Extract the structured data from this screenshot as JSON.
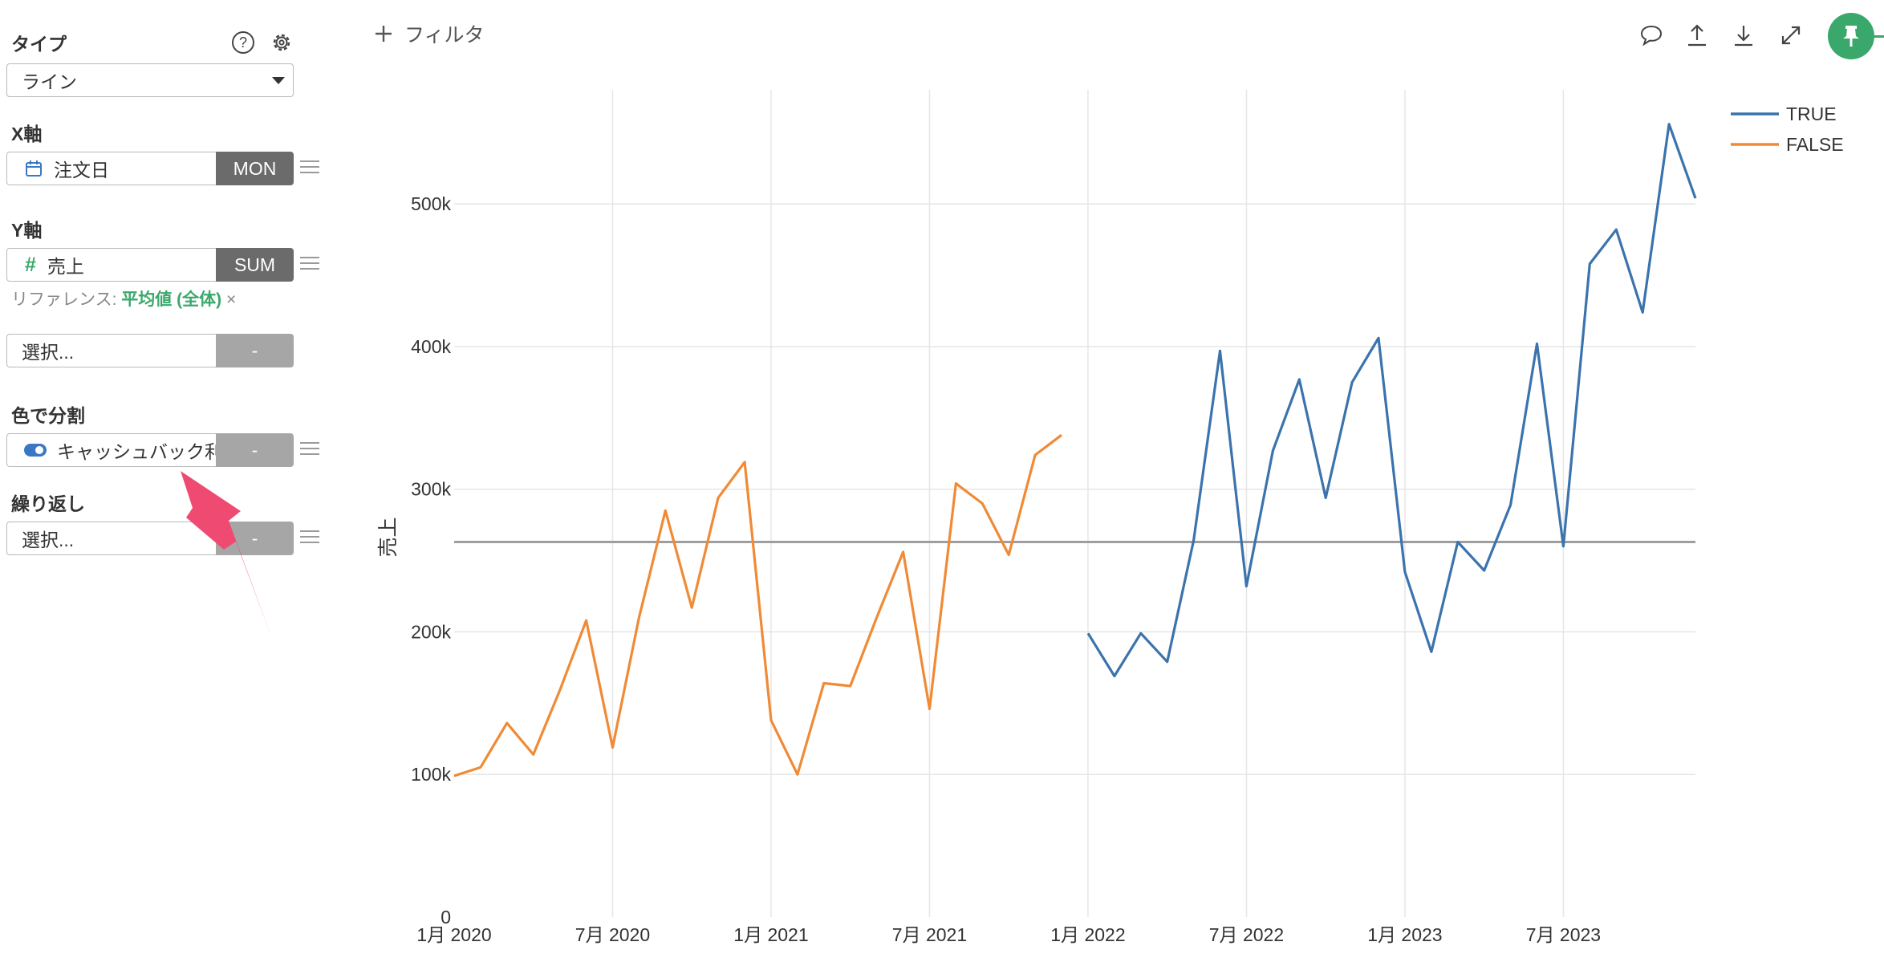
{
  "sidebar": {
    "type_section": {
      "label": "タイプ",
      "help_icon": "question-circle-icon",
      "settings_icon": "gear-icon",
      "selected": "ライン"
    },
    "x_axis": {
      "label": "X軸",
      "field": "注文日",
      "field_icon": "calendar-icon",
      "aggregation": "MON"
    },
    "y_axis": {
      "label": "Y軸",
      "field": "売上",
      "field_icon": "number-hash-icon",
      "aggregation": "SUM",
      "reference_label": "リファレンス:",
      "reference_value": "平均値 (全体)",
      "reference_remove": "×"
    },
    "extra_select": {
      "placeholder": "選択...",
      "aggregation": "-"
    },
    "color_split": {
      "label": "色で分割",
      "field": "キャッシュバック利用",
      "field_icon": "toggle-icon",
      "aggregation": "-"
    },
    "repeat": {
      "label": "繰り返し",
      "placeholder": "選択...",
      "aggregation": "-"
    }
  },
  "toolbar": {
    "filter_label": "フィルタ",
    "icons": [
      "comment-icon",
      "upload-icon",
      "download-icon",
      "expand-icon",
      "pin-icon"
    ]
  },
  "colors": {
    "true_series": "#3b73ad",
    "false_series": "#f08a35",
    "reference_line": "#9e9e9e",
    "accent_green": "#3aa86b",
    "annotation_arrow": "#ef4a72"
  },
  "chart_data": {
    "type": "line",
    "ylabel": "売上",
    "ylim": [
      0,
      580000
    ],
    "y_ticks": [
      {
        "value": 0,
        "label": "0"
      },
      {
        "value": 100000,
        "label": "100k"
      },
      {
        "value": 200000,
        "label": "200k"
      },
      {
        "value": 300000,
        "label": "300k"
      },
      {
        "value": 400000,
        "label": "400k"
      },
      {
        "value": 500000,
        "label": "500k"
      }
    ],
    "x_ticks": [
      {
        "index": 0,
        "label": "1月 2020"
      },
      {
        "index": 6,
        "label": "7月 2020"
      },
      {
        "index": 12,
        "label": "1月 2021"
      },
      {
        "index": 18,
        "label": "7月 2021"
      },
      {
        "index": 24,
        "label": "1月 2022"
      },
      {
        "index": 30,
        "label": "7月 2022"
      },
      {
        "index": 36,
        "label": "1月 2023"
      },
      {
        "index": 42,
        "label": "7月 2023"
      }
    ],
    "x_range": [
      0,
      47
    ],
    "reference_line": {
      "value": 263000
    },
    "series": [
      {
        "name": "TRUE",
        "start_month": "2022-01",
        "values": [
          199000,
          169000,
          199000,
          179000,
          264000,
          397000,
          232000,
          327000,
          377000,
          294000,
          375000,
          406000,
          242000,
          186000,
          263000,
          243000,
          289000,
          402000,
          260000,
          458000,
          482000,
          424000,
          556000,
          504000
        ]
      },
      {
        "name": "FALSE",
        "start_month": "2020-01",
        "values": [
          99000,
          105000,
          136000,
          114000,
          159000,
          208000,
          119000,
          210000,
          285000,
          217000,
          294000,
          319000,
          138000,
          100000,
          164000,
          162000,
          210000,
          256000,
          146000,
          304000,
          290000,
          254000,
          324000,
          338000
        ]
      }
    ],
    "legend": {
      "position": "top-right"
    }
  }
}
